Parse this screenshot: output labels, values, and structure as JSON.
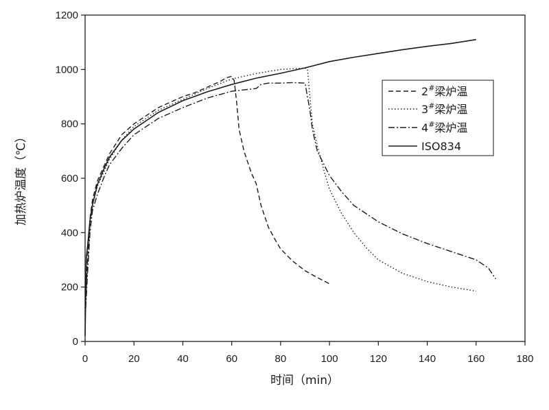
{
  "chart_data": {
    "type": "line",
    "xlabel": "时间（min）",
    "ylabel": "加热炉温度（℃）",
    "xlim": [
      0,
      180
    ],
    "ylim": [
      0,
      1200
    ],
    "xticks": [
      0,
      20,
      40,
      60,
      80,
      100,
      120,
      140,
      160,
      180
    ],
    "yticks": [
      0,
      200,
      400,
      600,
      800,
      1000,
      1200
    ],
    "grid": false,
    "legend_position": "right",
    "series": [
      {
        "name": "2#梁炉温",
        "name_main": "2",
        "name_sup": "#",
        "name_rest": "梁炉温",
        "style": "dashed",
        "color": "#1a1a1a",
        "points": [
          [
            0,
            120
          ],
          [
            1,
            300
          ],
          [
            2,
            450
          ],
          [
            3,
            520
          ],
          [
            5,
            590
          ],
          [
            8,
            650
          ],
          [
            10,
            690
          ],
          [
            15,
            760
          ],
          [
            20,
            800
          ],
          [
            25,
            830
          ],
          [
            30,
            860
          ],
          [
            35,
            880
          ],
          [
            40,
            900
          ],
          [
            45,
            915
          ],
          [
            50,
            935
          ],
          [
            55,
            955
          ],
          [
            58,
            970
          ],
          [
            60,
            975
          ],
          [
            61,
            960
          ],
          [
            62,
            880
          ],
          [
            63,
            780
          ],
          [
            65,
            700
          ],
          [
            68,
            620
          ],
          [
            70,
            580
          ],
          [
            72,
            500
          ],
          [
            75,
            420
          ],
          [
            78,
            370
          ],
          [
            80,
            340
          ],
          [
            85,
            295
          ],
          [
            90,
            260
          ],
          [
            95,
            235
          ],
          [
            100,
            212
          ]
        ]
      },
      {
        "name": "3#梁炉温",
        "name_main": "3",
        "name_sup": "#",
        "name_rest": "梁炉温",
        "style": "dotted",
        "color": "#1a1a1a",
        "points": [
          [
            0,
            100
          ],
          [
            1,
            280
          ],
          [
            2,
            420
          ],
          [
            3,
            500
          ],
          [
            5,
            570
          ],
          [
            8,
            630
          ],
          [
            10,
            670
          ],
          [
            15,
            740
          ],
          [
            20,
            790
          ],
          [
            30,
            850
          ],
          [
            40,
            890
          ],
          [
            50,
            930
          ],
          [
            60,
            965
          ],
          [
            70,
            985
          ],
          [
            80,
            1000
          ],
          [
            90,
            1005
          ],
          [
            91,
            1000
          ],
          [
            92,
            900
          ],
          [
            93,
            800
          ],
          [
            95,
            720
          ],
          [
            98,
            620
          ],
          [
            100,
            560
          ],
          [
            105,
            470
          ],
          [
            110,
            400
          ],
          [
            115,
            345
          ],
          [
            120,
            300
          ],
          [
            130,
            250
          ],
          [
            140,
            220
          ],
          [
            150,
            200
          ],
          [
            160,
            185
          ]
        ]
      },
      {
        "name": "4#梁炉温",
        "name_main": "4",
        "name_sup": "#",
        "name_rest": "梁炉温",
        "style": "dashdot",
        "color": "#1a1a1a",
        "points": [
          [
            0,
            80
          ],
          [
            1,
            250
          ],
          [
            2,
            400
          ],
          [
            3,
            480
          ],
          [
            5,
            540
          ],
          [
            8,
            610
          ],
          [
            10,
            650
          ],
          [
            15,
            710
          ],
          [
            20,
            760
          ],
          [
            25,
            790
          ],
          [
            30,
            820
          ],
          [
            40,
            860
          ],
          [
            50,
            895
          ],
          [
            60,
            920
          ],
          [
            65,
            925
          ],
          [
            70,
            930
          ],
          [
            72,
            945
          ],
          [
            75,
            950
          ],
          [
            80,
            950
          ],
          [
            85,
            952
          ],
          [
            90,
            950
          ],
          [
            92,
            850
          ],
          [
            93,
            780
          ],
          [
            95,
            700
          ],
          [
            100,
            610
          ],
          [
            105,
            550
          ],
          [
            110,
            500
          ],
          [
            120,
            440
          ],
          [
            130,
            395
          ],
          [
            140,
            360
          ],
          [
            150,
            330
          ],
          [
            160,
            300
          ],
          [
            165,
            270
          ],
          [
            168,
            230
          ]
        ]
      },
      {
        "name": "ISO834",
        "style": "solid",
        "color": "#1a1a1a",
        "points": [
          [
            0,
            20
          ],
          [
            0.5,
            310
          ],
          [
            1,
            350
          ],
          [
            2,
            445
          ],
          [
            3,
            502
          ],
          [
            5,
            576
          ],
          [
            8,
            640
          ],
          [
            10,
            678
          ],
          [
            15,
            739
          ],
          [
            20,
            781
          ],
          [
            30,
            842
          ],
          [
            40,
            885
          ],
          [
            50,
            918
          ],
          [
            60,
            945
          ],
          [
            70,
            968
          ],
          [
            80,
            986
          ],
          [
            90,
            1006
          ],
          [
            100,
            1029
          ],
          [
            110,
            1045
          ],
          [
            120,
            1059
          ],
          [
            130,
            1073
          ],
          [
            140,
            1085
          ],
          [
            150,
            1096
          ],
          [
            160,
            1110
          ]
        ]
      }
    ]
  }
}
